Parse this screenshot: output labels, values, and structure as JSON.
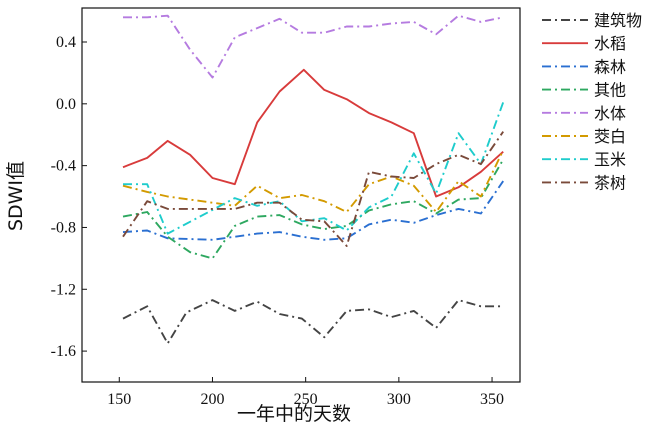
{
  "chart_data": {
    "type": "line",
    "xlabel": "一年中的天数",
    "ylabel": "SDWI值",
    "xlim": [
      130,
      365
    ],
    "ylim": [
      -1.8,
      0.62
    ],
    "xticks": [
      150,
      200,
      250,
      300,
      350
    ],
    "yticks": [
      -1.6,
      -1.2,
      -0.8,
      -0.4,
      0.0,
      0.4
    ],
    "ytick_labels": [
      "-1.6",
      "-1.2",
      "-0.8",
      "-0.4",
      "0.0",
      "0.4"
    ],
    "grid": false,
    "legend_position": "right",
    "series": [
      {
        "name": "建筑物",
        "color": "#444444",
        "dash": "dashdot",
        "points": [
          [
            152,
            -1.39
          ],
          [
            165,
            -1.31
          ],
          [
            176,
            -1.55
          ],
          [
            186,
            -1.35
          ],
          [
            200,
            -1.27
          ],
          [
            212,
            -1.34
          ],
          [
            224,
            -1.28
          ],
          [
            236,
            -1.36
          ],
          [
            248,
            -1.39
          ],
          [
            260,
            -1.51
          ],
          [
            272,
            -1.34
          ],
          [
            284,
            -1.33
          ],
          [
            296,
            -1.38
          ],
          [
            308,
            -1.34
          ],
          [
            320,
            -1.45
          ],
          [
            332,
            -1.27
          ],
          [
            344,
            -1.31
          ],
          [
            356,
            -1.31
          ]
        ]
      },
      {
        "name": "水稻",
        "color": "#d83b3b",
        "dash": "solid",
        "points": [
          [
            152,
            -0.41
          ],
          [
            165,
            -0.35
          ],
          [
            176,
            -0.24
          ],
          [
            188,
            -0.33
          ],
          [
            200,
            -0.48
          ],
          [
            212,
            -0.52
          ],
          [
            224,
            -0.12
          ],
          [
            236,
            0.08
          ],
          [
            249,
            0.22
          ],
          [
            260,
            0.09
          ],
          [
            272,
            0.03
          ],
          [
            284,
            -0.06
          ],
          [
            296,
            -0.12
          ],
          [
            308,
            -0.19
          ],
          [
            320,
            -0.6
          ],
          [
            332,
            -0.54
          ],
          [
            344,
            -0.44
          ],
          [
            356,
            -0.31
          ]
        ]
      },
      {
        "name": "森林",
        "color": "#2a6fd1",
        "dash": "dashdot",
        "points": [
          [
            152,
            -0.83
          ],
          [
            165,
            -0.82
          ],
          [
            176,
            -0.87
          ],
          [
            200,
            -0.88
          ],
          [
            212,
            -0.86
          ],
          [
            224,
            -0.84
          ],
          [
            236,
            -0.83
          ],
          [
            248,
            -0.86
          ],
          [
            260,
            -0.88
          ],
          [
            272,
            -0.87
          ],
          [
            284,
            -0.78
          ],
          [
            296,
            -0.75
          ],
          [
            308,
            -0.77
          ],
          [
            320,
            -0.72
          ],
          [
            332,
            -0.68
          ],
          [
            344,
            -0.71
          ],
          [
            356,
            -0.5
          ]
        ]
      },
      {
        "name": "其他",
        "color": "#2ea860",
        "dash": "dashdot",
        "points": [
          [
            152,
            -0.73
          ],
          [
            165,
            -0.7
          ],
          [
            176,
            -0.86
          ],
          [
            188,
            -0.96
          ],
          [
            200,
            -1.0
          ],
          [
            212,
            -0.79
          ],
          [
            224,
            -0.73
          ],
          [
            236,
            -0.72
          ],
          [
            248,
            -0.78
          ],
          [
            260,
            -0.81
          ],
          [
            272,
            -0.79
          ],
          [
            284,
            -0.69
          ],
          [
            296,
            -0.65
          ],
          [
            308,
            -0.63
          ],
          [
            320,
            -0.71
          ],
          [
            332,
            -0.62
          ],
          [
            344,
            -0.61
          ],
          [
            356,
            -0.36
          ]
        ]
      },
      {
        "name": "水体",
        "color": "#b57be0",
        "dash": "dashdot",
        "points": [
          [
            152,
            0.56
          ],
          [
            165,
            0.56
          ],
          [
            176,
            0.57
          ],
          [
            188,
            0.35
          ],
          [
            200,
            0.17
          ],
          [
            212,
            0.43
          ],
          [
            224,
            0.49
          ],
          [
            236,
            0.55
          ],
          [
            248,
            0.46
          ],
          [
            260,
            0.46
          ],
          [
            272,
            0.5
          ],
          [
            284,
            0.5
          ],
          [
            296,
            0.52
          ],
          [
            308,
            0.53
          ],
          [
            320,
            0.45
          ],
          [
            332,
            0.57
          ],
          [
            344,
            0.53
          ],
          [
            356,
            0.56
          ]
        ]
      },
      {
        "name": "茭白",
        "color": "#d39a00",
        "dash": "dashdot",
        "points": [
          [
            152,
            -0.53
          ],
          [
            165,
            -0.57
          ],
          [
            176,
            -0.6
          ],
          [
            212,
            -0.66
          ],
          [
            224,
            -0.53
          ],
          [
            236,
            -0.61
          ],
          [
            248,
            -0.59
          ],
          [
            260,
            -0.63
          ],
          [
            272,
            -0.7
          ],
          [
            284,
            -0.52
          ],
          [
            296,
            -0.47
          ],
          [
            308,
            -0.53
          ],
          [
            320,
            -0.7
          ],
          [
            332,
            -0.5
          ],
          [
            344,
            -0.6
          ],
          [
            356,
            -0.3
          ]
        ]
      },
      {
        "name": "玉米",
        "color": "#1ecccc",
        "dash": "dashdot",
        "points": [
          [
            152,
            -0.52
          ],
          [
            165,
            -0.52
          ],
          [
            176,
            -0.84
          ],
          [
            212,
            -0.61
          ],
          [
            224,
            -0.66
          ],
          [
            236,
            -0.63
          ],
          [
            248,
            -0.76
          ],
          [
            260,
            -0.74
          ],
          [
            272,
            -0.82
          ],
          [
            284,
            -0.67
          ],
          [
            296,
            -0.6
          ],
          [
            308,
            -0.32
          ],
          [
            320,
            -0.58
          ],
          [
            332,
            -0.19
          ],
          [
            344,
            -0.39
          ],
          [
            356,
            0.01
          ]
        ]
      },
      {
        "name": "茶树",
        "color": "#7a4a3a",
        "dash": "dashdot",
        "points": [
          [
            152,
            -0.86
          ],
          [
            165,
            -0.63
          ],
          [
            176,
            -0.68
          ],
          [
            212,
            -0.68
          ],
          [
            224,
            -0.64
          ],
          [
            236,
            -0.64
          ],
          [
            248,
            -0.75
          ],
          [
            260,
            -0.76
          ],
          [
            272,
            -0.92
          ],
          [
            284,
            -0.44
          ],
          [
            296,
            -0.47
          ],
          [
            308,
            -0.48
          ],
          [
            320,
            -0.39
          ],
          [
            332,
            -0.33
          ],
          [
            344,
            -0.39
          ],
          [
            356,
            -0.18
          ]
        ]
      }
    ]
  }
}
